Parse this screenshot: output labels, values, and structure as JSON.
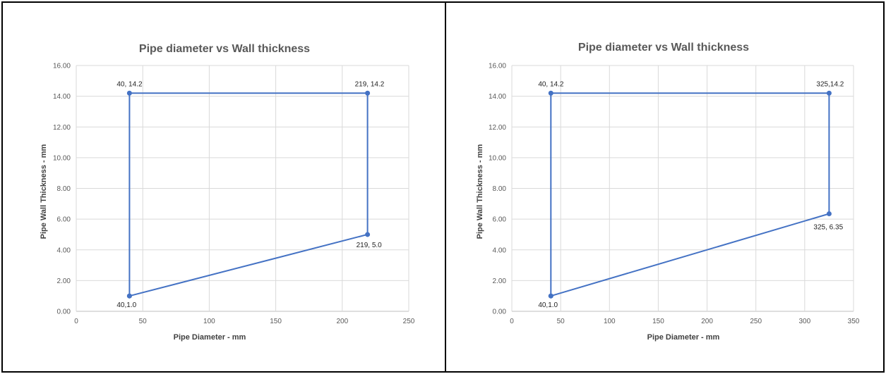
{
  "chart_data": [
    {
      "type": "scatter",
      "title": "Pipe diameter vs Wall thickness",
      "xlabel": "Pipe Diameter - mm",
      "ylabel": "Pipe Wall Thickness - mm",
      "xlim": [
        0,
        250
      ],
      "ylim": [
        0,
        16
      ],
      "x_ticks": [
        "0",
        "50",
        "100",
        "150",
        "200",
        "250"
      ],
      "y_ticks": [
        "0.00",
        "2.00",
        "4.00",
        "6.00",
        "8.00",
        "10.00",
        "12.00",
        "14.00",
        "16.00"
      ],
      "grid": true,
      "series": [
        {
          "color": "#4472c4",
          "points": [
            {
              "x": 40,
              "y": 1.0,
              "label": "40,1.0"
            },
            {
              "x": 40,
              "y": 14.2,
              "label": "40, 14.2"
            },
            {
              "x": 219,
              "y": 14.2,
              "label": "219, 14.2"
            },
            {
              "x": 219,
              "y": 5.0,
              "label": "219, 5.0"
            },
            {
              "x": 40,
              "y": 1.0,
              "label": ""
            }
          ]
        }
      ]
    },
    {
      "type": "scatter",
      "title": "Pipe diameter vs Wall thickness",
      "xlabel": "Pipe Diameter - mm",
      "ylabel": "Pipe Wall Thickness - mm",
      "xlim": [
        0,
        350
      ],
      "ylim": [
        0,
        16
      ],
      "x_ticks": [
        "0",
        "50",
        "100",
        "150",
        "200",
        "250",
        "300",
        "350"
      ],
      "y_ticks": [
        "0.00",
        "2.00",
        "4.00",
        "6.00",
        "8.00",
        "10.00",
        "12.00",
        "14.00",
        "16.00"
      ],
      "grid": true,
      "series": [
        {
          "color": "#4472c4",
          "points": [
            {
              "x": 40,
              "y": 1.0,
              "label": "40,1.0"
            },
            {
              "x": 40,
              "y": 14.2,
              "label": "40, 14.2"
            },
            {
              "x": 325,
              "y": 14.2,
              "label": "325,14.2"
            },
            {
              "x": 325,
              "y": 6.35,
              "label": "325, 6.35"
            },
            {
              "x": 40,
              "y": 1.0,
              "label": ""
            }
          ]
        }
      ]
    }
  ]
}
